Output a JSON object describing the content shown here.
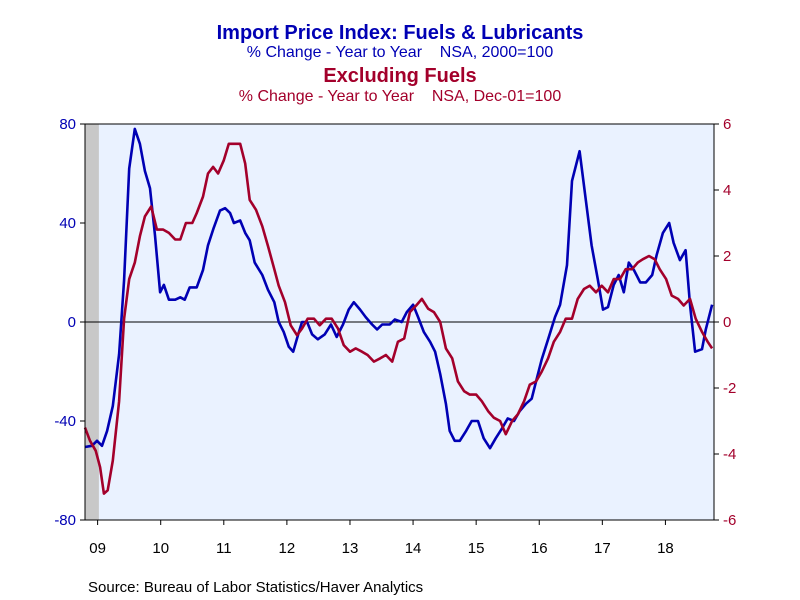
{
  "chart_data": {
    "type": "line",
    "title": "Import Price Index: Fuels & Lubricants",
    "subtitle": "% Change - Year to Year    NSA, 2000=100",
    "title2": "Excluding Fuels",
    "subtitle2": "% Change - Year to Year    NSA, Dec-01=100",
    "source": "Source:  Bureau of Labor Statistics/Haver Analytics",
    "background": "#eaf2ff",
    "recession_shading": [
      [
        2009.3,
        2009.52
      ]
    ],
    "xlim": [
      2009.3,
      2019.27
    ],
    "xticks": [
      {
        "value": 2009.5,
        "label": "09"
      },
      {
        "value": 2010.5,
        "label": "10"
      },
      {
        "value": 2011.5,
        "label": "11"
      },
      {
        "value": 2012.5,
        "label": "12"
      },
      {
        "value": 2013.5,
        "label": "13"
      },
      {
        "value": 2014.5,
        "label": "14"
      },
      {
        "value": 2015.5,
        "label": "15"
      },
      {
        "value": 2016.5,
        "label": "16"
      },
      {
        "value": 2017.5,
        "label": "17"
      },
      {
        "value": 2018.5,
        "label": "18"
      }
    ],
    "ylim": [
      -80,
      80
    ],
    "yticks": [
      80,
      40,
      0,
      -40,
      -80
    ],
    "y2lim": [
      -6,
      6
    ],
    "y2ticks": [
      6,
      4,
      2,
      0,
      -2,
      -4,
      -6
    ],
    "series": [
      {
        "name": "Import Price Index: Fuels & Lubricants",
        "color": "#0000b4",
        "axis": "y",
        "x": [
          2009.3,
          2009.41,
          2009.49,
          2009.57,
          2009.65,
          2009.74,
          2009.84,
          2009.92,
          2010.0,
          2010.09,
          2010.17,
          2010.25,
          2010.33,
          2010.41,
          2010.49,
          2010.55,
          2010.63,
          2010.73,
          2010.81,
          2010.88,
          2010.96,
          2011.07,
          2011.17,
          2011.25,
          2011.34,
          2011.44,
          2011.52,
          2011.6,
          2011.66,
          2011.76,
          2011.84,
          2011.91,
          2011.99,
          2012.11,
          2012.2,
          2012.3,
          2012.37,
          2012.45,
          2012.53,
          2012.6,
          2012.68,
          2012.74,
          2012.82,
          2012.9,
          2012.99,
          2013.1,
          2013.2,
          2013.29,
          2013.39,
          2013.48,
          2013.56,
          2013.66,
          2013.75,
          2013.85,
          2013.93,
          2014.01,
          2014.13,
          2014.21,
          2014.32,
          2014.4,
          2014.5,
          2014.58,
          2014.67,
          2014.77,
          2014.85,
          2014.93,
          2015.02,
          2015.08,
          2015.16,
          2015.24,
          2015.34,
          2015.43,
          2015.53,
          2015.62,
          2015.72,
          2015.81,
          2015.91,
          2016.0,
          2016.1,
          2016.19,
          2016.29,
          2016.38,
          2016.46,
          2016.54,
          2016.64,
          2016.75,
          2016.83,
          2016.94,
          2017.02,
          2017.14,
          2017.24,
          2017.33,
          2017.43,
          2017.51,
          2017.59,
          2017.68,
          2017.76,
          2017.84,
          2017.92,
          2018.0,
          2018.1,
          2018.19,
          2018.29,
          2018.36,
          2018.46,
          2018.56,
          2018.63,
          2018.73,
          2018.82,
          2018.89,
          2018.97,
          2019.08,
          2019.14,
          2019.24
        ],
        "values": [
          -50.5,
          -50,
          -48,
          -50,
          -44,
          -34,
          -13,
          17,
          62,
          78,
          72,
          61,
          54,
          35,
          12,
          15,
          9,
          9,
          10,
          9,
          14,
          14,
          21,
          31,
          38,
          45,
          46,
          44,
          40,
          41,
          36,
          33,
          24,
          19,
          13,
          8,
          0,
          -4,
          -10,
          -12,
          -5,
          0,
          0,
          -5,
          -7,
          -5,
          -1,
          -6,
          -1,
          5,
          8,
          5,
          2,
          -1,
          -3,
          -1,
          -1,
          1,
          0,
          4,
          7,
          2,
          -4,
          -8,
          -12,
          -21,
          -33,
          -44,
          -48,
          -48,
          -44,
          -40,
          -40,
          -47,
          -51,
          -47,
          -43,
          -39,
          -40,
          -36,
          -33,
          -31,
          -23,
          -15,
          -7,
          2,
          7,
          23,
          57,
          69,
          49,
          31,
          17,
          5,
          6,
          15,
          19,
          12,
          24,
          21,
          16,
          16,
          19,
          27,
          36,
          40,
          32,
          25,
          29,
          7,
          -12,
          -11,
          -3,
          7
        ]
      },
      {
        "name": "Excluding Fuels",
        "color": "#a3002b",
        "axis": "y2",
        "x": [
          2009.3,
          2009.38,
          2009.47,
          2009.54,
          2009.6,
          2009.66,
          2009.74,
          2009.84,
          2009.92,
          2010.0,
          2010.09,
          2010.17,
          2010.25,
          2010.35,
          2010.44,
          2010.54,
          2010.63,
          2010.73,
          2010.81,
          2010.9,
          2011.0,
          2011.07,
          2011.17,
          2011.25,
          2011.33,
          2011.41,
          2011.5,
          2011.58,
          2011.66,
          2011.76,
          2011.84,
          2011.91,
          2012.01,
          2012.11,
          2012.2,
          2012.3,
          2012.37,
          2012.47,
          2012.56,
          2012.66,
          2012.74,
          2012.83,
          2012.93,
          2013.02,
          2013.12,
          2013.21,
          2013.31,
          2013.4,
          2013.5,
          2013.59,
          2013.69,
          2013.78,
          2013.88,
          2013.98,
          2014.07,
          2014.17,
          2014.26,
          2014.36,
          2014.45,
          2014.55,
          2014.64,
          2014.74,
          2014.83,
          2014.93,
          2015.02,
          2015.12,
          2015.21,
          2015.31,
          2015.4,
          2015.5,
          2015.59,
          2015.69,
          2015.78,
          2015.88,
          2015.97,
          2016.07,
          2016.16,
          2016.26,
          2016.35,
          2016.45,
          2016.54,
          2016.64,
          2016.73,
          2016.83,
          2016.92,
          2017.02,
          2017.11,
          2017.21,
          2017.3,
          2017.4,
          2017.49,
          2017.59,
          2017.68,
          2017.78,
          2017.87,
          2017.97,
          2018.06,
          2018.14,
          2018.24,
          2018.33,
          2018.41,
          2018.51,
          2018.6,
          2018.7,
          2018.79,
          2018.89,
          2018.98,
          2019.08,
          2019.17,
          2019.24
        ],
        "values": [
          -3.2,
          -3.6,
          -3.9,
          -4.4,
          -5.2,
          -5.1,
          -4.2,
          -2.4,
          0.1,
          1.3,
          1.8,
          2.6,
          3.2,
          3.5,
          2.8,
          2.8,
          2.7,
          2.5,
          2.5,
          3.0,
          3.0,
          3.3,
          3.8,
          4.5,
          4.7,
          4.5,
          4.9,
          5.4,
          5.4,
          5.4,
          4.8,
          3.7,
          3.4,
          2.9,
          2.3,
          1.6,
          1.1,
          0.6,
          -0.1,
          -0.4,
          -0.2,
          0.1,
          0.1,
          -0.1,
          0.1,
          0.1,
          -0.2,
          -0.7,
          -0.9,
          -0.8,
          -0.9,
          -1.0,
          -1.2,
          -1.1,
          -1.0,
          -1.2,
          -0.6,
          -0.5,
          0.3,
          0.5,
          0.7,
          0.4,
          0.3,
          0.0,
          -0.8,
          -1.1,
          -1.8,
          -2.1,
          -2.2,
          -2.2,
          -2.4,
          -2.7,
          -2.9,
          -3.0,
          -3.4,
          -3.0,
          -2.8,
          -2.4,
          -1.9,
          -1.8,
          -1.5,
          -1.1,
          -0.6,
          -0.3,
          0.1,
          0.1,
          0.7,
          1.0,
          1.1,
          0.9,
          1.1,
          0.9,
          1.3,
          1.3,
          1.6,
          1.6,
          1.8,
          1.9,
          2.0,
          1.9,
          1.6,
          1.3,
          0.8,
          0.7,
          0.5,
          0.7,
          0.1,
          -0.3,
          -0.6,
          -0.8
        ]
      }
    ]
  }
}
